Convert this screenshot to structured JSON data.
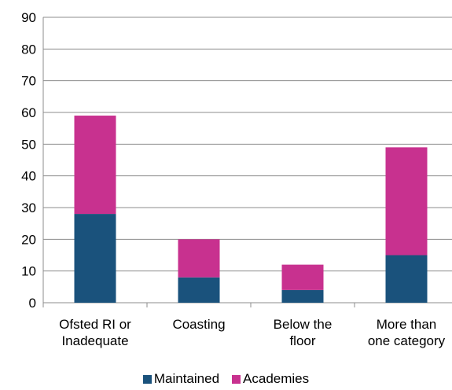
{
  "chart_data": {
    "type": "bar",
    "stacked": true,
    "categories": [
      [
        "Ofsted RI or",
        "Inadequate"
      ],
      [
        "Coasting"
      ],
      [
        "Below the",
        "floor"
      ],
      [
        "More than",
        "one category"
      ]
    ],
    "series": [
      {
        "name": "Maintained",
        "color": "#1a527c",
        "values": [
          28,
          8,
          4,
          15
        ]
      },
      {
        "name": "Academies",
        "color": "#c8318f",
        "values": [
          31,
          12,
          8,
          34
        ]
      }
    ],
    "ylim": [
      0,
      90
    ],
    "yticks": [
      0,
      10,
      20,
      30,
      40,
      50,
      60,
      70,
      80,
      90
    ],
    "grid": true,
    "legend_position": "bottom"
  },
  "legend": {
    "maintained_label": "Maintained",
    "academies_label": "Academies"
  }
}
